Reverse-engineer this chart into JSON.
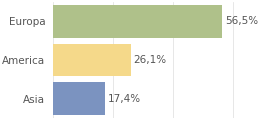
{
  "categories": [
    "Asia",
    "America",
    "Europa"
  ],
  "values": [
    17.4,
    26.1,
    56.5
  ],
  "labels": [
    "17,4%",
    "26,1%",
    "56,5%"
  ],
  "bar_colors": [
    "#7b93c0",
    "#f5d98a",
    "#afc18a"
  ],
  "background_color": "#ffffff",
  "xlim": [
    0,
    75
  ],
  "label_fontsize": 7.5,
  "tick_fontsize": 7.5,
  "bar_height": 0.85
}
